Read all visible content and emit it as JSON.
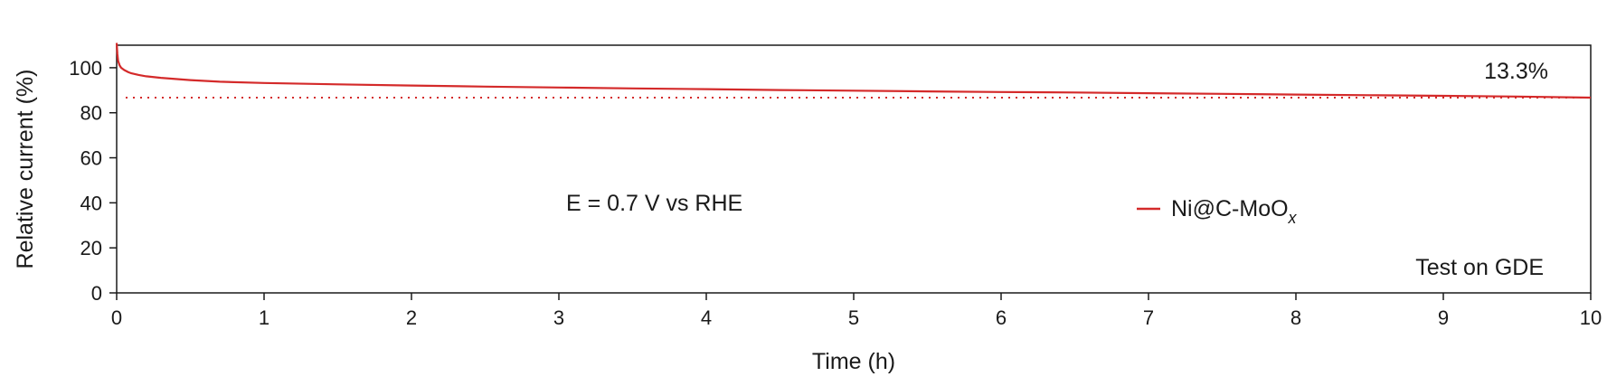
{
  "chart_data": {
    "type": "line",
    "xlabel": "Time (h)",
    "ylabel": "Relative current (%)",
    "xlim": [
      0,
      10
    ],
    "ylim": [
      0,
      110
    ],
    "xticks": [
      0,
      1,
      2,
      3,
      4,
      5,
      6,
      7,
      8,
      9,
      10
    ],
    "yticks": [
      0,
      20,
      40,
      60,
      80,
      100
    ],
    "grid": false,
    "legend_position": "center-right",
    "series": [
      {
        "name": "Ni@C-MoOx",
        "name_main": "Ni@C-MoO",
        "name_subscript": "x",
        "color": "#d42a2a",
        "x": [
          0,
          0.005,
          0.01,
          0.02,
          0.03,
          0.05,
          0.08,
          0.1,
          0.15,
          0.2,
          0.3,
          0.5,
          0.7,
          1.0,
          1.5,
          2.0,
          2.5,
          3.0,
          3.5,
          4.0,
          4.5,
          5.0,
          5.5,
          6.0,
          6.5,
          7.0,
          7.5,
          8.0,
          8.5,
          9.0,
          9.5,
          10.0
        ],
        "y": [
          111,
          106,
          103,
          101,
          100,
          99,
          98,
          97.5,
          96.8,
          96.2,
          95.5,
          94.5,
          93.8,
          93.2,
          92.6,
          92.1,
          91.6,
          91.2,
          90.8,
          90.5,
          90.1,
          89.8,
          89.5,
          89.2,
          89.0,
          88.7,
          88.4,
          88.1,
          87.8,
          87.5,
          87.2,
          86.7
        ]
      }
    ],
    "reference_line": {
      "y": 86.7,
      "style": "dotted",
      "color": "#d42a2a"
    },
    "annotations": [
      {
        "text": "13.3%",
        "color": "#d42a2a"
      },
      {
        "text": "E = 0.7 V vs RHE",
        "color": "#1a1a1a"
      },
      {
        "text": "Test on GDE",
        "color": "#1a1a1a"
      }
    ]
  }
}
